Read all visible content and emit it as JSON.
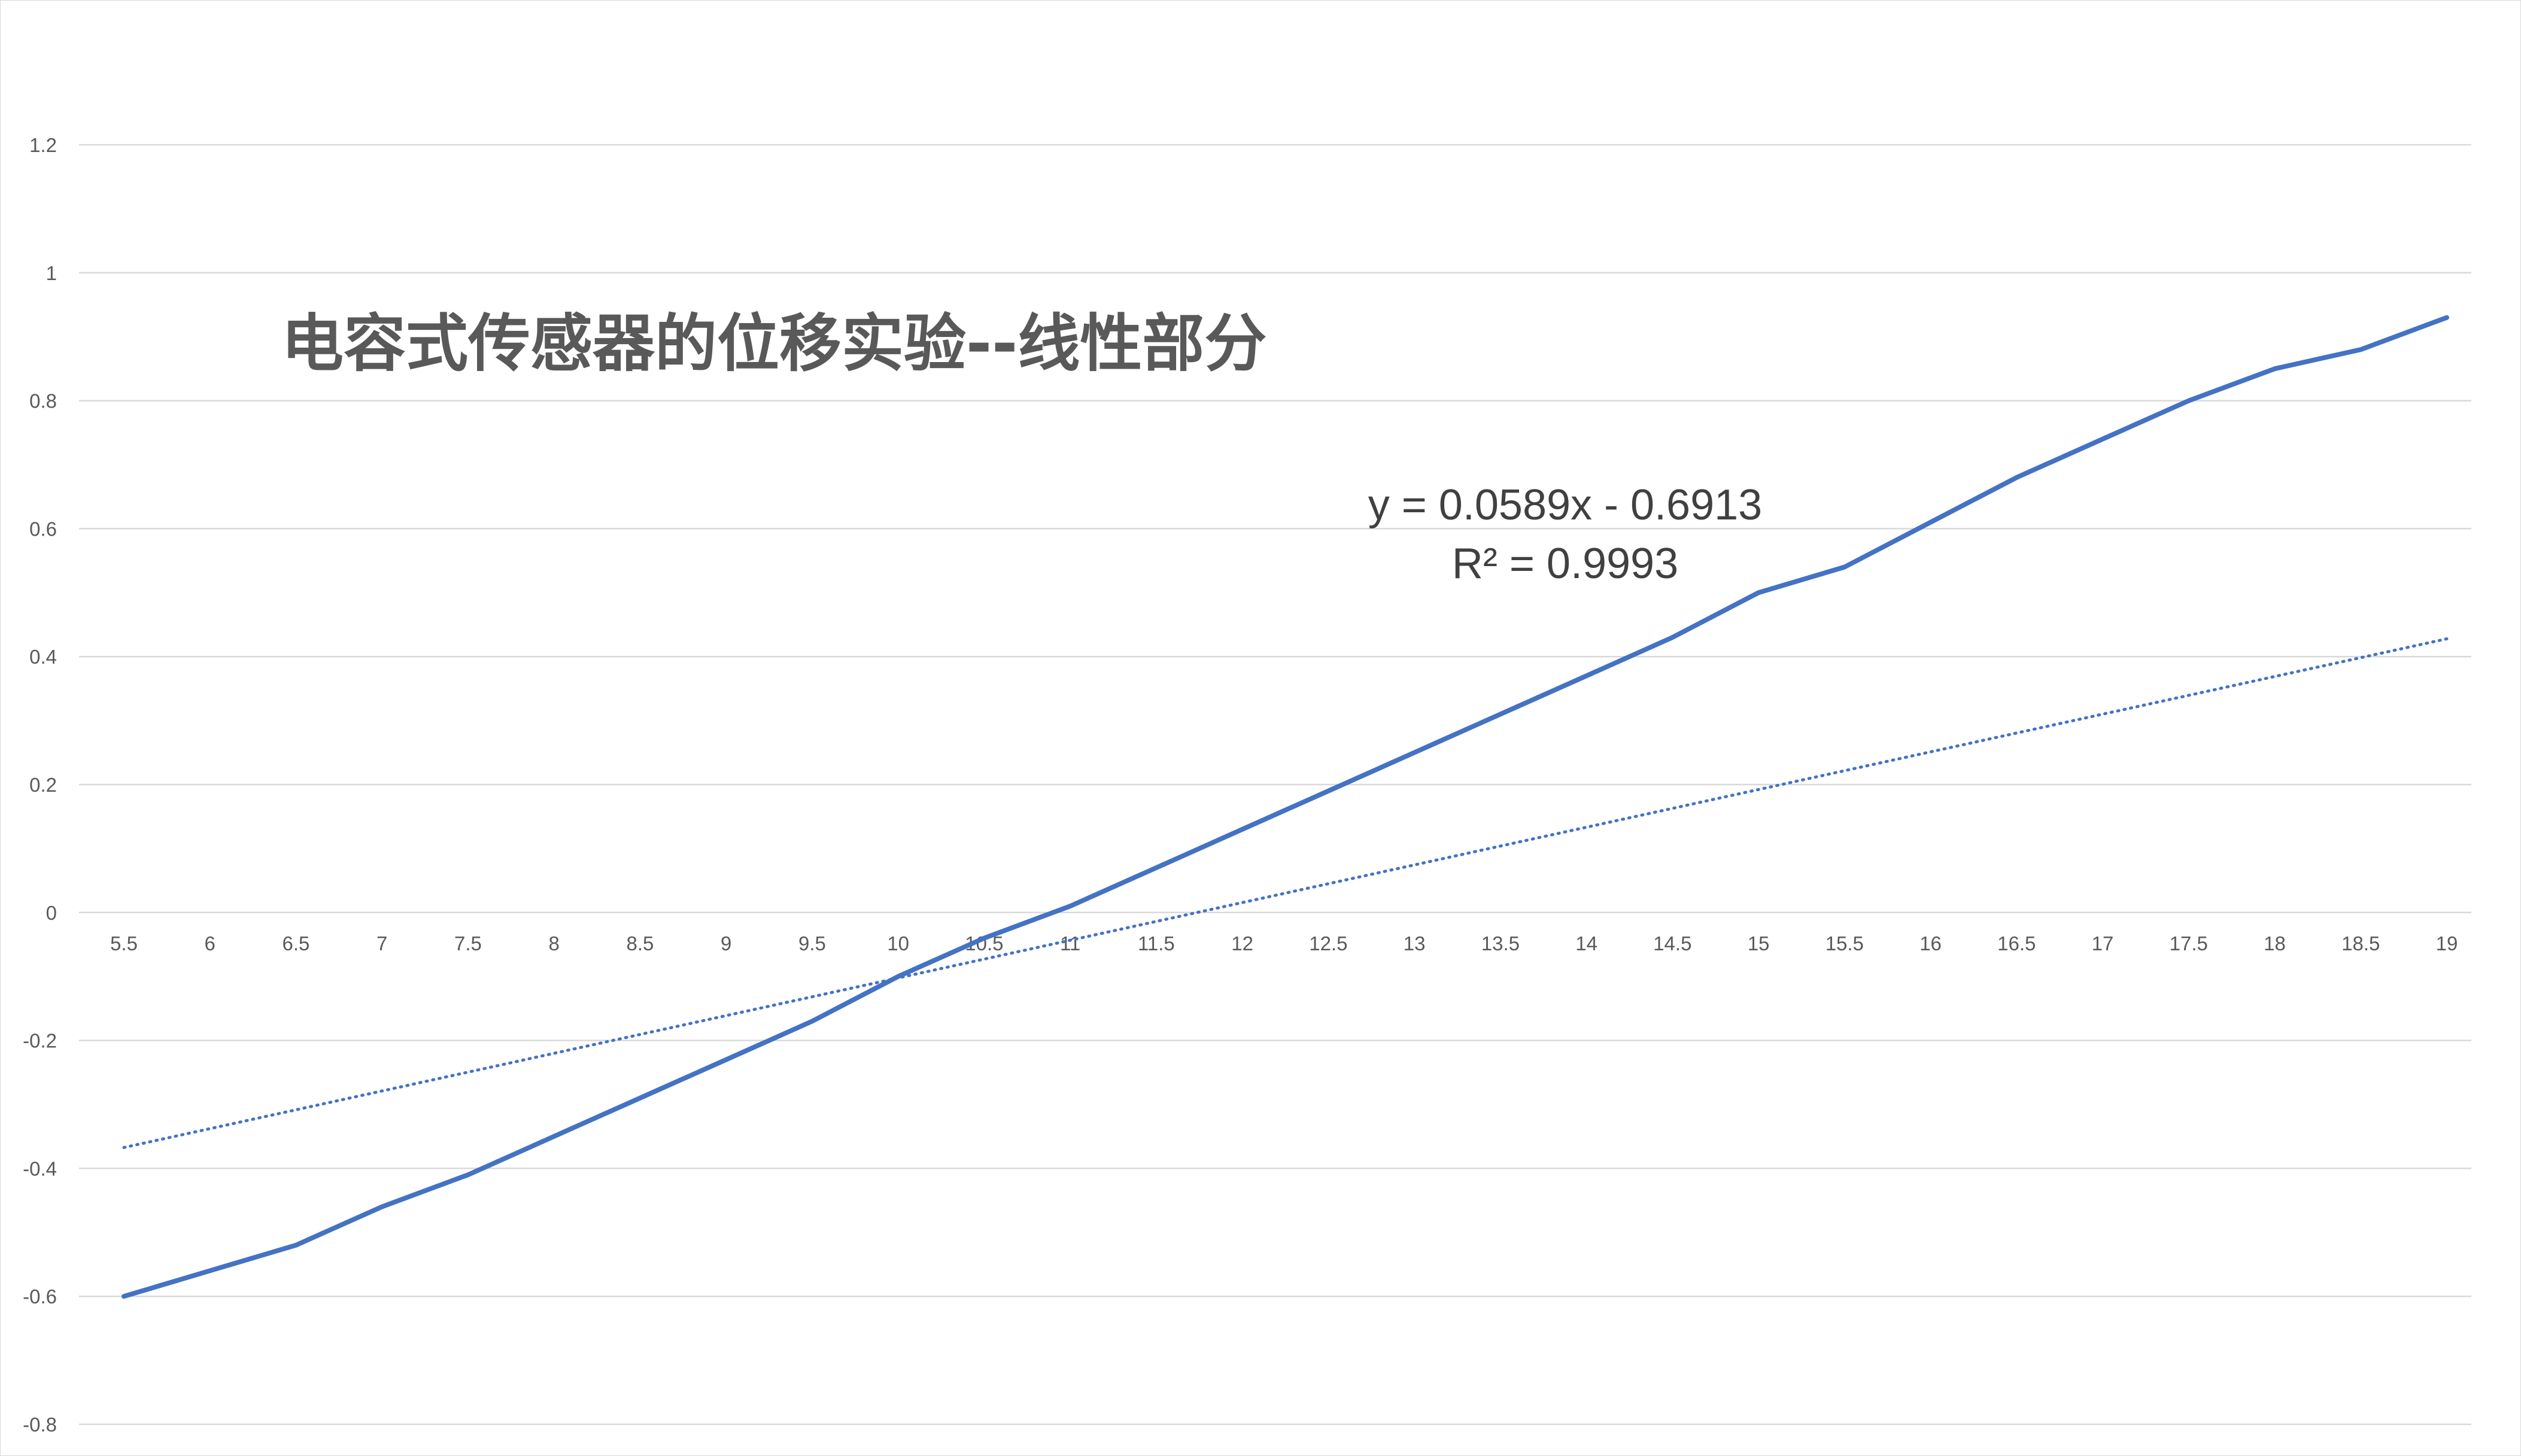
{
  "chart_data": {
    "type": "line",
    "title": "电容式传感器的位移实验--线性部分",
    "xlabel": "",
    "ylabel": "",
    "x": [
      5.5,
      6,
      6.5,
      7,
      7.5,
      8,
      8.5,
      9,
      9.5,
      10,
      10.5,
      11,
      11.5,
      12,
      12.5,
      13,
      13.5,
      14,
      14.5,
      15,
      15.5,
      16,
      16.5,
      17,
      17.5,
      18,
      18.5,
      19
    ],
    "x_tick_labels": [
      "5.5",
      "6",
      "6.5",
      "7",
      "7.5",
      "8",
      "8.5",
      "9",
      "9.5",
      "10",
      "10.5",
      "11",
      "11.5",
      "12",
      "12.5",
      "13",
      "13.5",
      "14",
      "14.5",
      "15",
      "15.5",
      "16",
      "16.5",
      "17",
      "17.5",
      "18",
      "18.5",
      "19"
    ],
    "ylim": [
      -0.8,
      1.2
    ],
    "y_ticks": [
      -0.8,
      -0.6,
      -0.4,
      -0.2,
      0,
      0.2,
      0.4,
      0.6,
      0.8,
      1,
      1.2
    ],
    "y_tick_labels": [
      "-0.8",
      "-0.6",
      "-0.4",
      "-0.2",
      "0",
      "0.2",
      "0.4",
      "0.6",
      "0.8",
      "1",
      "1.2"
    ],
    "grid": true,
    "legend": "none",
    "series": [
      {
        "values": [
          -0.6,
          -0.56,
          -0.52,
          -0.46,
          -0.41,
          -0.35,
          -0.29,
          -0.23,
          -0.17,
          -0.1,
          -0.04,
          0.01,
          0.07,
          0.13,
          0.19,
          0.25,
          0.31,
          0.37,
          0.43,
          0.5,
          0.54,
          0.61,
          0.68,
          0.74,
          0.8,
          0.85,
          0.88,
          0.93
        ],
        "color": "#4472C4",
        "style": "solid"
      }
    ],
    "trendline": {
      "type": "linear",
      "slope": 0.0589,
      "intercept": -0.6913,
      "equation_label": "y = 0.0589x - 0.6913",
      "r2_label": "R² = 0.9993",
      "color": "#4472C4",
      "style": "dotted"
    },
    "colors": {
      "grid": "#d9d9d9",
      "tick_text": "#595959",
      "title": "#595959",
      "annotation": "#404040"
    }
  }
}
